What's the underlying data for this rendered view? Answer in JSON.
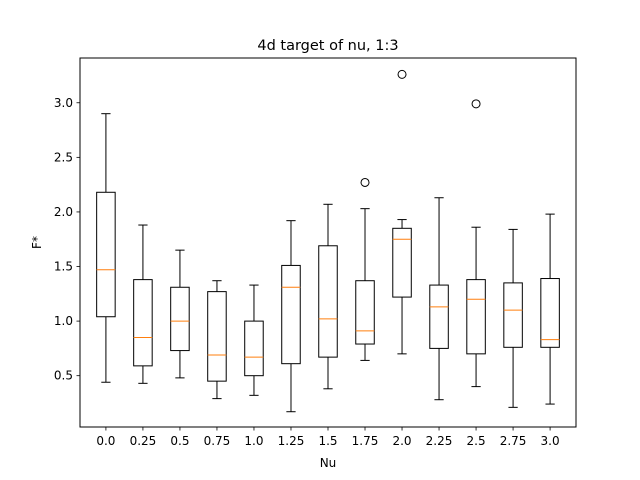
{
  "chart_data": {
    "type": "box",
    "title": "4d target of nu, 1:3",
    "xlabel": "Nu",
    "ylabel": "F*",
    "ylim": [
      0.03,
      3.41
    ],
    "yticks": [
      "0.5",
      "1.0",
      "1.5",
      "2.0",
      "2.5",
      "3.0"
    ],
    "ytick_values": [
      0.5,
      1.0,
      1.5,
      2.0,
      2.5,
      3.0
    ],
    "grid": false,
    "colors": {
      "box": "#000000",
      "median": "#ff7f0e"
    },
    "boxes": [
      {
        "label": "0.0",
        "whislo": 0.44,
        "q1": 1.04,
        "med": 1.47,
        "q3": 2.18,
        "whishi": 2.9,
        "fliers": []
      },
      {
        "label": "0.25",
        "whislo": 0.43,
        "q1": 0.59,
        "med": 0.85,
        "q3": 1.38,
        "whishi": 1.88,
        "fliers": []
      },
      {
        "label": "0.5",
        "whislo": 0.48,
        "q1": 0.73,
        "med": 1.0,
        "q3": 1.31,
        "whishi": 1.65,
        "fliers": []
      },
      {
        "label": "0.75",
        "whislo": 0.29,
        "q1": 0.45,
        "med": 0.69,
        "q3": 1.27,
        "whishi": 1.37,
        "fliers": []
      },
      {
        "label": "1.0",
        "whislo": 0.32,
        "q1": 0.5,
        "med": 0.67,
        "q3": 1.0,
        "whishi": 1.33,
        "fliers": []
      },
      {
        "label": "1.25",
        "whislo": 0.17,
        "q1": 0.61,
        "med": 1.31,
        "q3": 1.51,
        "whishi": 1.92,
        "fliers": []
      },
      {
        "label": "1.5",
        "whislo": 0.38,
        "q1": 0.67,
        "med": 1.02,
        "q3": 1.69,
        "whishi": 2.07,
        "fliers": []
      },
      {
        "label": "1.75",
        "whislo": 0.64,
        "q1": 0.79,
        "med": 0.91,
        "q3": 1.37,
        "whishi": 2.03,
        "fliers": [
          2.27
        ]
      },
      {
        "label": "2.0",
        "whislo": 0.7,
        "q1": 1.22,
        "med": 1.75,
        "q3": 1.85,
        "whishi": 1.93,
        "fliers": [
          3.26
        ]
      },
      {
        "label": "2.25",
        "whislo": 0.28,
        "q1": 0.75,
        "med": 1.13,
        "q3": 1.33,
        "whishi": 2.13,
        "fliers": []
      },
      {
        "label": "2.5",
        "whislo": 0.4,
        "q1": 0.7,
        "med": 1.2,
        "q3": 1.38,
        "whishi": 1.86,
        "fliers": [
          2.99
        ]
      },
      {
        "label": "2.75",
        "whislo": 0.21,
        "q1": 0.76,
        "med": 1.1,
        "q3": 1.35,
        "whishi": 1.84,
        "fliers": []
      },
      {
        "label": "3.0",
        "whislo": 0.24,
        "q1": 0.76,
        "med": 0.83,
        "q3": 1.39,
        "whishi": 1.98,
        "fliers": []
      }
    ]
  }
}
